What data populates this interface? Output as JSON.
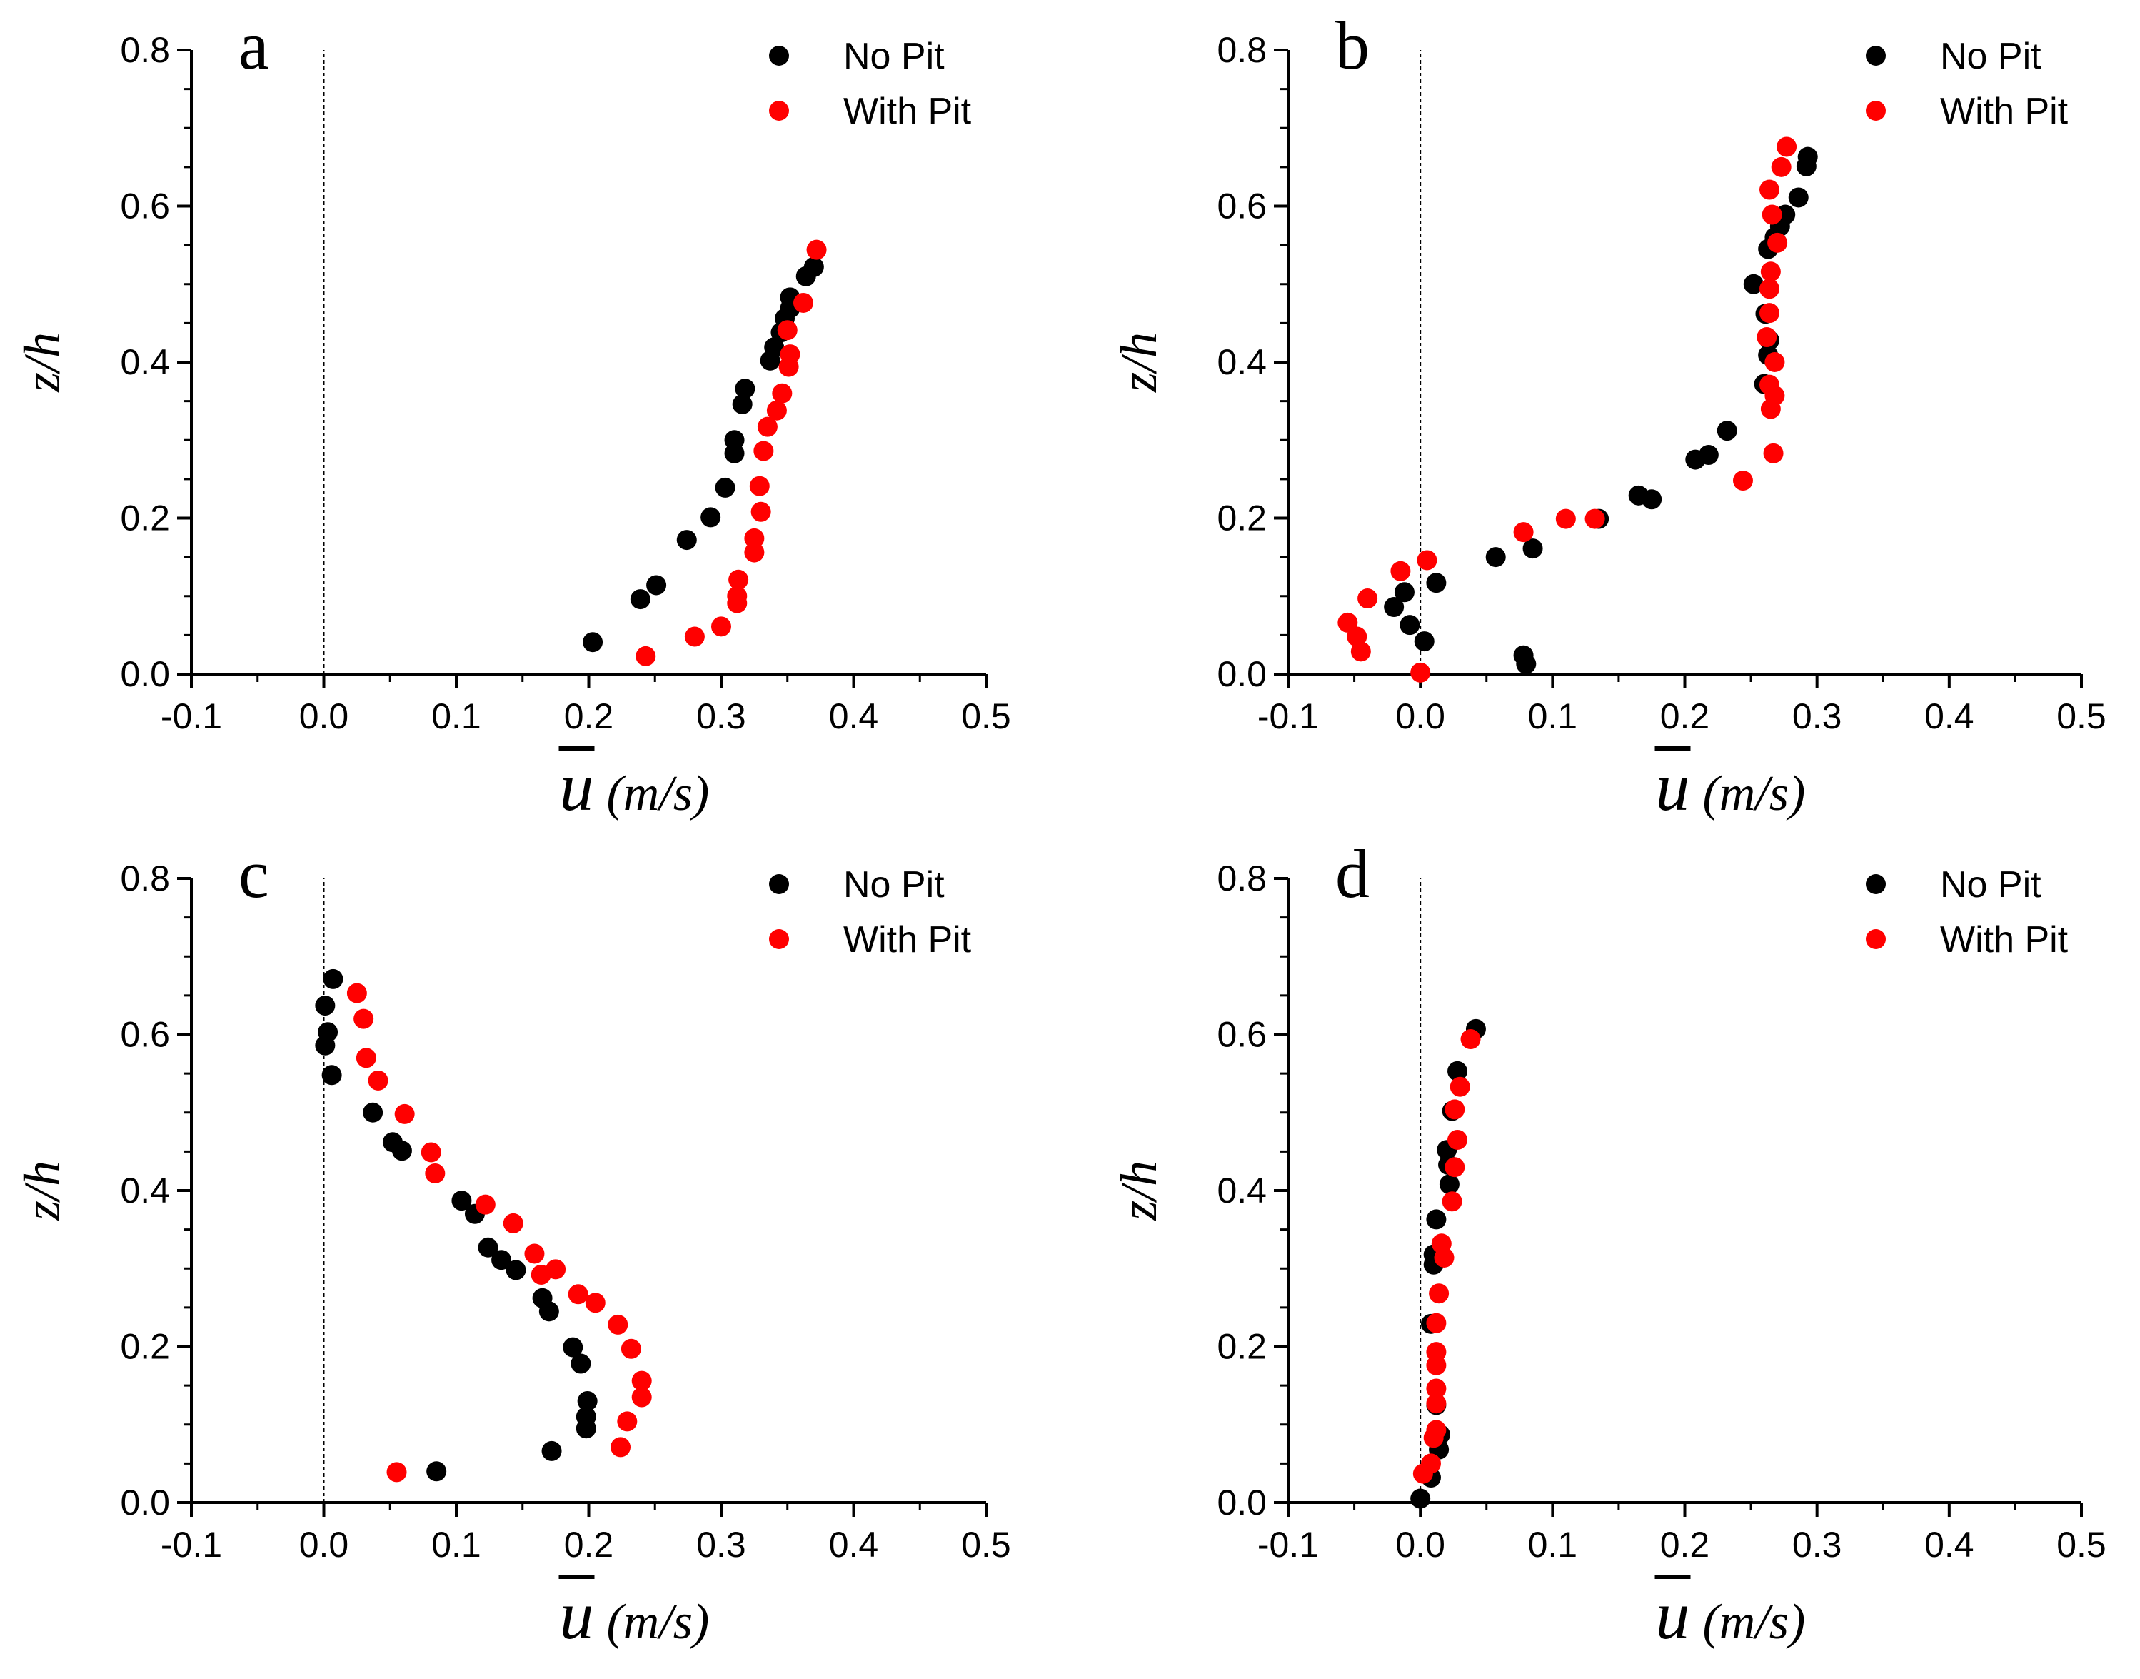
{
  "colors": {
    "no_pit": "#000000",
    "with_pit": "#ff0000",
    "axis": "#000000",
    "zero_line": "#000000"
  },
  "axis_text": {
    "ylabel": "z/h",
    "xlabel_var": "u",
    "xlabel_units": "(m/s)"
  },
  "legend": {
    "no_pit": "No Pit",
    "with_pit": "With Pit"
  },
  "chart_data": [
    {
      "type": "scatter",
      "panel": "a",
      "xlabel": "u (m/s)",
      "ylabel": "z/h",
      "xlim": [
        -0.1,
        0.5
      ],
      "ylim": [
        0.0,
        0.8
      ],
      "xticks": [
        "-0.1",
        "0.0",
        "0.1",
        "0.2",
        "0.3",
        "0.4",
        "0.5"
      ],
      "yticks": [
        "0.0",
        "0.2",
        "0.4",
        "0.6",
        "0.8"
      ],
      "series": [
        {
          "name": "No Pit",
          "points": [
            [
              0.203,
              0.041
            ],
            [
              0.239,
              0.096
            ],
            [
              0.251,
              0.114
            ],
            [
              0.274,
              0.172
            ],
            [
              0.292,
              0.201
            ],
            [
              0.303,
              0.239
            ],
            [
              0.31,
              0.283
            ],
            [
              0.31,
              0.3
            ],
            [
              0.316,
              0.346
            ],
            [
              0.318,
              0.366
            ],
            [
              0.337,
              0.402
            ],
            [
              0.34,
              0.419
            ],
            [
              0.345,
              0.438
            ],
            [
              0.348,
              0.456
            ],
            [
              0.352,
              0.469
            ],
            [
              0.352,
              0.483
            ],
            [
              0.364,
              0.51
            ],
            [
              0.37,
              0.522
            ]
          ]
        },
        {
          "name": "With Pit",
          "points": [
            [
              0.243,
              0.023
            ],
            [
              0.28,
              0.048
            ],
            [
              0.3,
              0.061
            ],
            [
              0.312,
              0.091
            ],
            [
              0.312,
              0.1
            ],
            [
              0.313,
              0.121
            ],
            [
              0.325,
              0.156
            ],
            [
              0.325,
              0.174
            ],
            [
              0.33,
              0.208
            ],
            [
              0.329,
              0.241
            ],
            [
              0.332,
              0.286
            ],
            [
              0.335,
              0.317
            ],
            [
              0.342,
              0.338
            ],
            [
              0.346,
              0.36
            ],
            [
              0.351,
              0.394
            ],
            [
              0.352,
              0.41
            ],
            [
              0.35,
              0.441
            ],
            [
              0.362,
              0.476
            ],
            [
              0.372,
              0.544
            ]
          ]
        }
      ]
    },
    {
      "type": "scatter",
      "panel": "b",
      "xlabel": "u (m/s)",
      "ylabel": "z/h",
      "xlim": [
        -0.1,
        0.5
      ],
      "ylim": [
        0.0,
        0.8
      ],
      "xticks": [
        "-0.1",
        "0.0",
        "0.1",
        "0.2",
        "0.3",
        "0.4",
        "0.5"
      ],
      "yticks": [
        "0.0",
        "0.2",
        "0.4",
        "0.6",
        "0.8"
      ],
      "series": [
        {
          "name": "No Pit",
          "points": [
            [
              0.08,
              0.013
            ],
            [
              0.078,
              0.024
            ],
            [
              0.003,
              0.042
            ],
            [
              -0.008,
              0.063
            ],
            [
              -0.02,
              0.086
            ],
            [
              -0.012,
              0.105
            ],
            [
              0.012,
              0.117
            ],
            [
              0.085,
              0.161
            ],
            [
              0.057,
              0.15
            ],
            [
              0.175,
              0.224
            ],
            [
              0.165,
              0.229
            ],
            [
              0.135,
              0.199
            ],
            [
              0.208,
              0.275
            ],
            [
              0.218,
              0.281
            ],
            [
              0.232,
              0.312
            ],
            [
              0.26,
              0.372
            ],
            [
              0.263,
              0.409
            ],
            [
              0.264,
              0.428
            ],
            [
              0.261,
              0.462
            ],
            [
              0.252,
              0.5
            ],
            [
              0.263,
              0.545
            ],
            [
              0.268,
              0.56
            ],
            [
              0.272,
              0.574
            ],
            [
              0.276,
              0.589
            ],
            [
              0.286,
              0.611
            ],
            [
              0.292,
              0.651
            ],
            [
              0.293,
              0.663
            ]
          ]
        },
        {
          "name": "With Pit",
          "points": [
            [
              0.0,
              0.002
            ],
            [
              -0.045,
              0.029
            ],
            [
              -0.048,
              0.048
            ],
            [
              -0.055,
              0.066
            ],
            [
              -0.04,
              0.097
            ],
            [
              -0.015,
              0.132
            ],
            [
              0.005,
              0.146
            ],
            [
              0.078,
              0.182
            ],
            [
              0.11,
              0.199
            ],
            [
              0.132,
              0.199
            ],
            [
              0.244,
              0.248
            ],
            [
              0.267,
              0.283
            ],
            [
              0.265,
              0.34
            ],
            [
              0.268,
              0.357
            ],
            [
              0.264,
              0.371
            ],
            [
              0.268,
              0.4
            ],
            [
              0.262,
              0.432
            ],
            [
              0.264,
              0.463
            ],
            [
              0.264,
              0.494
            ],
            [
              0.265,
              0.516
            ],
            [
              0.27,
              0.553
            ],
            [
              0.266,
              0.589
            ],
            [
              0.264,
              0.621
            ],
            [
              0.273,
              0.65
            ],
            [
              0.277,
              0.676
            ]
          ]
        }
      ]
    },
    {
      "type": "scatter",
      "panel": "c",
      "xlabel": "u (m/s)",
      "ylabel": "z/h",
      "xlim": [
        -0.1,
        0.5
      ],
      "ylim": [
        0.0,
        0.8
      ],
      "xticks": [
        "-0.1",
        "0.0",
        "0.1",
        "0.2",
        "0.3",
        "0.4",
        "0.5"
      ],
      "yticks": [
        "0.0",
        "0.2",
        "0.4",
        "0.6",
        "0.8"
      ],
      "series": [
        {
          "name": "No Pit",
          "points": [
            [
              0.085,
              0.04
            ],
            [
              0.172,
              0.066
            ],
            [
              0.198,
              0.095
            ],
            [
              0.198,
              0.11
            ],
            [
              0.199,
              0.13
            ],
            [
              0.194,
              0.178
            ],
            [
              0.188,
              0.199
            ],
            [
              0.17,
              0.245
            ],
            [
              0.165,
              0.262
            ],
            [
              0.145,
              0.298
            ],
            [
              0.134,
              0.311
            ],
            [
              0.124,
              0.327
            ],
            [
              0.114,
              0.37
            ],
            [
              0.104,
              0.387
            ],
            [
              0.059,
              0.451
            ],
            [
              0.052,
              0.462
            ],
            [
              0.037,
              0.5
            ],
            [
              0.006,
              0.548
            ],
            [
              0.001,
              0.586
            ],
            [
              0.003,
              0.603
            ],
            [
              0.001,
              0.637
            ],
            [
              0.007,
              0.671
            ]
          ]
        },
        {
          "name": "With Pit",
          "points": [
            [
              0.055,
              0.039
            ],
            [
              0.224,
              0.071
            ],
            [
              0.229,
              0.104
            ],
            [
              0.24,
              0.135
            ],
            [
              0.24,
              0.156
            ],
            [
              0.232,
              0.197
            ],
            [
              0.222,
              0.228
            ],
            [
              0.205,
              0.256
            ],
            [
              0.192,
              0.267
            ],
            [
              0.175,
              0.299
            ],
            [
              0.164,
              0.292
            ],
            [
              0.159,
              0.319
            ],
            [
              0.143,
              0.358
            ],
            [
              0.122,
              0.382
            ],
            [
              0.084,
              0.422
            ],
            [
              0.081,
              0.449
            ],
            [
              0.061,
              0.498
            ],
            [
              0.041,
              0.541
            ],
            [
              0.032,
              0.57
            ],
            [
              0.03,
              0.62
            ],
            [
              0.025,
              0.653
            ]
          ]
        }
      ]
    },
    {
      "type": "scatter",
      "panel": "d",
      "xlabel": "u (m/s)",
      "ylabel": "z/h",
      "xlim": [
        -0.1,
        0.5
      ],
      "ylim": [
        0.0,
        0.8
      ],
      "xticks": [
        "-0.1",
        "0.0",
        "0.1",
        "0.2",
        "0.3",
        "0.4",
        "0.5"
      ],
      "yticks": [
        "0.0",
        "0.2",
        "0.4",
        "0.6",
        "0.8"
      ],
      "series": [
        {
          "name": "No Pit",
          "points": [
            [
              0.0,
              0.005
            ],
            [
              0.008,
              0.032
            ],
            [
              0.014,
              0.068
            ],
            [
              0.015,
              0.087
            ],
            [
              0.012,
              0.125
            ],
            [
              0.008,
              0.229
            ],
            [
              0.01,
              0.305
            ],
            [
              0.01,
              0.318
            ],
            [
              0.012,
              0.363
            ],
            [
              0.022,
              0.408
            ],
            [
              0.021,
              0.433
            ],
            [
              0.02,
              0.452
            ],
            [
              0.024,
              0.502
            ],
            [
              0.028,
              0.553
            ],
            [
              0.042,
              0.607
            ]
          ]
        },
        {
          "name": "With Pit",
          "points": [
            [
              0.002,
              0.037
            ],
            [
              0.008,
              0.05
            ],
            [
              0.01,
              0.083
            ],
            [
              0.012,
              0.093
            ],
            [
              0.012,
              0.127
            ],
            [
              0.012,
              0.146
            ],
            [
              0.012,
              0.176
            ],
            [
              0.012,
              0.193
            ],
            [
              0.012,
              0.23
            ],
            [
              0.014,
              0.268
            ],
            [
              0.018,
              0.314
            ],
            [
              0.016,
              0.332
            ],
            [
              0.024,
              0.386
            ],
            [
              0.026,
              0.43
            ],
            [
              0.028,
              0.465
            ],
            [
              0.026,
              0.504
            ],
            [
              0.03,
              0.533
            ],
            [
              0.038,
              0.594
            ]
          ]
        }
      ]
    }
  ]
}
